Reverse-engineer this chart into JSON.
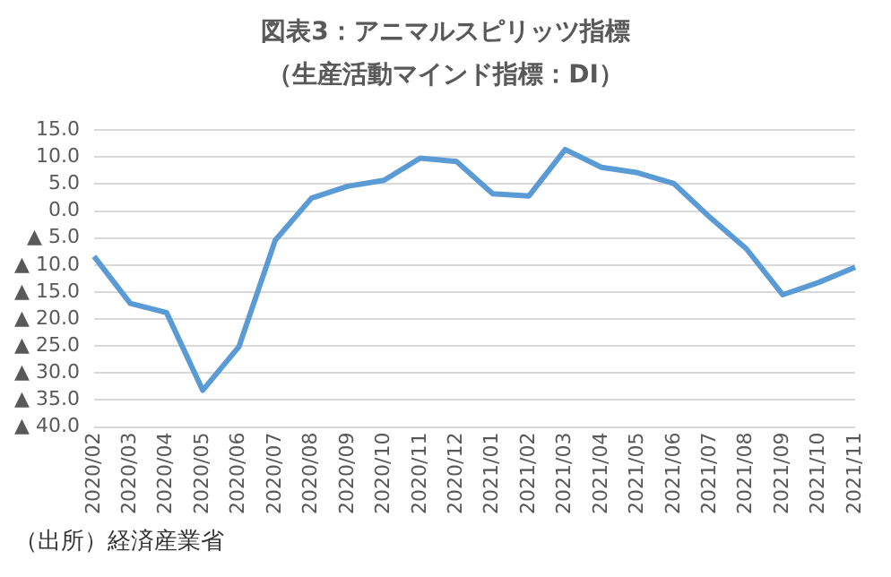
{
  "chart_data": {
    "type": "line",
    "title": "図表3：アニマルスピリッツ指標",
    "subtitle": "（生産活動マインド指標：DI）",
    "categories": [
      "2020/02",
      "2020/03",
      "2020/04",
      "2020/05",
      "2020/06",
      "2020/07",
      "2020/08",
      "2020/09",
      "2020/10",
      "2020/11",
      "2020/12",
      "2021/01",
      "2021/02",
      "2021/03",
      "2021/04",
      "2021/05",
      "2021/06",
      "2021/07",
      "2021/08",
      "2021/09",
      "2021/10",
      "2021/11"
    ],
    "series": [
      {
        "color": "#5b9bd5",
        "values": [
          -8.4,
          -17.1,
          -18.8,
          -33.2,
          -25.1,
          -5.4,
          2.4,
          4.6,
          5.7,
          9.8,
          9.2,
          3.2,
          2.8,
          11.4,
          8.1,
          7.1,
          5.1,
          -1.2,
          -7.0,
          -15.5,
          -13.2,
          -10.4
        ]
      }
    ],
    "ylim": [
      -40,
      15
    ],
    "yticks": [
      {
        "value": -40,
        "label": "▲ 40.0"
      },
      {
        "value": -35,
        "label": "▲ 35.0"
      },
      {
        "value": -30,
        "label": "▲ 30.0"
      },
      {
        "value": -25,
        "label": "▲ 25.0"
      },
      {
        "value": -20,
        "label": "▲ 20.0"
      },
      {
        "value": -15,
        "label": "▲ 15.0"
      },
      {
        "value": -10,
        "label": "▲ 10.0"
      },
      {
        "value": -5,
        "label": "▲ 5.0"
      },
      {
        "value": 0,
        "label": "0.0"
      },
      {
        "value": 5,
        "label": "5.0"
      },
      {
        "value": 10,
        "label": "10.0"
      },
      {
        "value": 15,
        "label": "15.0"
      }
    ],
    "grid": "y",
    "legend": false,
    "marker": "none",
    "line_style": "solid",
    "annotations": [
      "（出所）経済産業省"
    ]
  }
}
